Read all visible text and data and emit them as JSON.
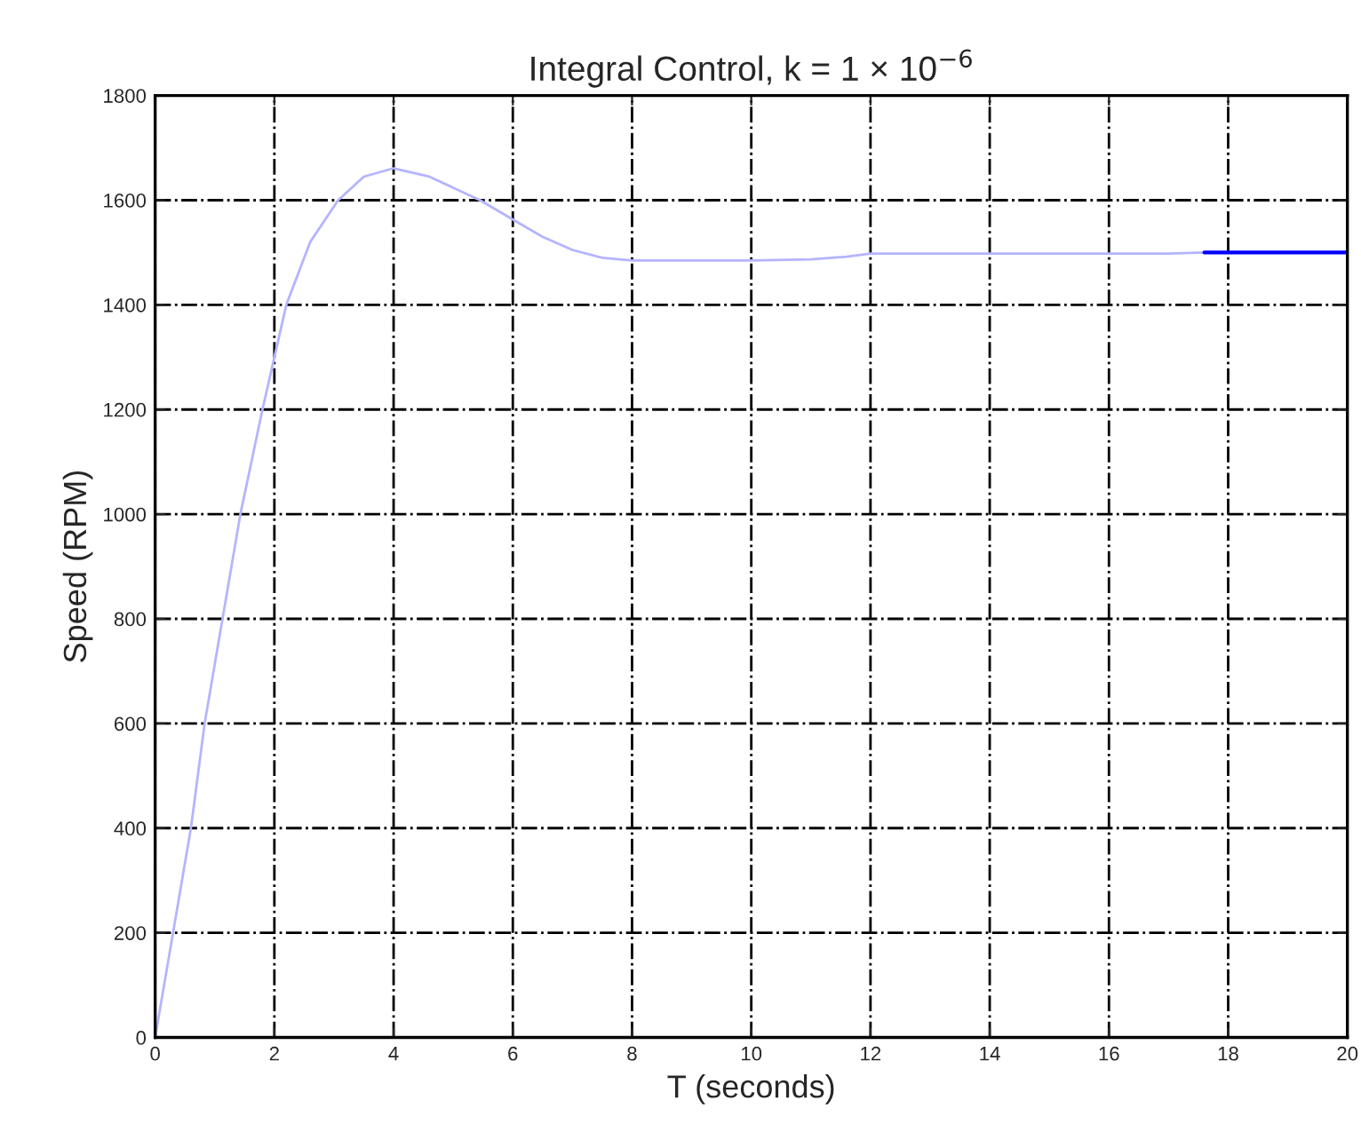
{
  "chart_data": {
    "type": "line",
    "title": "Integral Control, k = 1 × 10$^{−6}$",
    "xlabel": "T (seconds)",
    "ylabel": "Speed (RPM)",
    "series": [
      {
        "color": "#b4b4ff",
        "x": [
          0,
          0.3,
          0.6,
          0.83,
          1.13,
          1.43,
          1.8,
          2.2,
          2.6,
          3.07,
          3.5,
          4,
          4.6,
          5.45,
          6,
          6.5,
          7,
          7.5,
          8,
          9,
          10,
          11,
          11.6,
          12,
          13,
          14,
          15,
          16,
          17,
          17.6
        ],
        "values": [
          0,
          200,
          400,
          600,
          800,
          1000,
          1200,
          1400,
          1520,
          1600,
          1645,
          1661,
          1645,
          1600,
          1563,
          1530,
          1505,
          1490,
          1485,
          1485,
          1485,
          1487,
          1492,
          1498,
          1498,
          1498,
          1498,
          1498,
          1498,
          1500
        ]
      },
      {
        "color": "#0000ff",
        "x": [
          17.6,
          20
        ],
        "values": [
          1500,
          1500
        ]
      }
    ],
    "xlim": [
      0,
      20
    ],
    "ylim": [
      0,
      1800
    ],
    "xticks": [
      0,
      2,
      4,
      6,
      8,
      10,
      12,
      14,
      16,
      18,
      20
    ],
    "yticks": [
      0,
      200,
      400,
      600,
      800,
      1000,
      1200,
      1400,
      1600,
      1800
    ],
    "grid": true
  }
}
